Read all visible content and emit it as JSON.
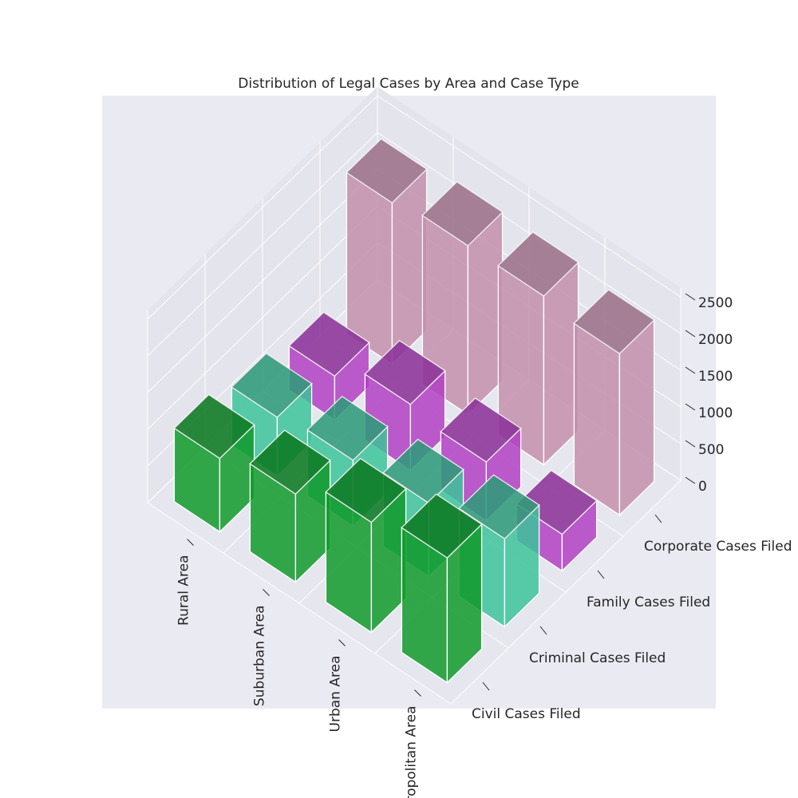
{
  "chart_data": {
    "type": "bar3d",
    "title": "Distribution of Legal Cases by Area and Case Type",
    "categories": [
      "Rural Area",
      "Suburban Area",
      "Urban Area",
      "Metropolitan Area"
    ],
    "series": [
      {
        "name": "Civil Cases Filed",
        "color": "#0f9a2c",
        "values": [
          1000,
          1200,
          1500,
          1700
        ]
      },
      {
        "name": "Criminal Cases Filed",
        "color": "#3cc39a",
        "values": [
          800,
          900,
          1000,
          1200
        ]
      },
      {
        "name": "Family Cases Filed",
        "color": "#b23fc2",
        "values": [
          600,
          900,
          800,
          500
        ]
      },
      {
        "name": "Corporate Cases Filed",
        "color": "#c48fad",
        "values": [
          2200,
          2300,
          2300,
          2200
        ]
      }
    ],
    "zlim": [
      0,
      2500
    ],
    "zticks": [
      0,
      500,
      1000,
      1500,
      2000,
      2500
    ],
    "grid": true
  }
}
